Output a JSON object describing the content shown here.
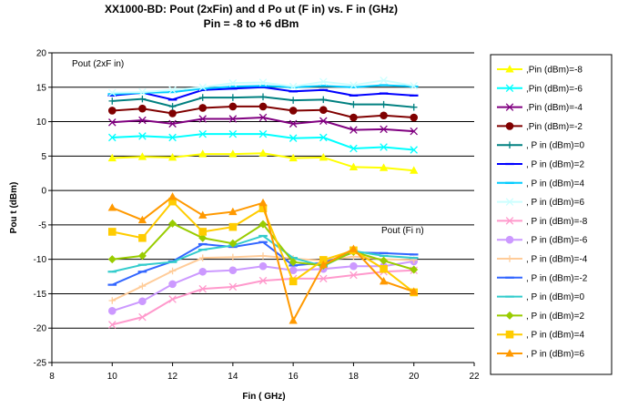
{
  "chart_data": {
    "type": "line",
    "title": "XX1000-BD: Pout (2xFin) and d Po ut (F in) vs. F in (GHz)",
    "subtitle": "Pin = -8 to +6 dBm",
    "xlabel": "Fin ( GHz)",
    "ylabel": "Pou t (dBm)",
    "xlim": [
      8,
      22
    ],
    "ylim": [
      -25,
      20
    ],
    "xticks": [
      8,
      10,
      12,
      14,
      16,
      18,
      20,
      22
    ],
    "yticks": [
      -25,
      -20,
      -15,
      -10,
      -5,
      0,
      5,
      10,
      15,
      20
    ],
    "grid": "horizontal",
    "legend_position": "right",
    "annotations": [
      "Pout (2xF in)",
      "Pout (Fi n)"
    ],
    "x": [
      10,
      11,
      12,
      13,
      14,
      15,
      16,
      17,
      18,
      19,
      20
    ],
    "series": [
      {
        "name": ",Pin  (dBm)=-8",
        "color": "#FFFF00",
        "marker": "triangle",
        "values": [
          4.7,
          4.9,
          4.8,
          5.3,
          5.3,
          5.4,
          4.7,
          4.8,
          3.4,
          3.3,
          2.9
        ]
      },
      {
        "name": ",Pin  (dBm)=-6",
        "color": "#00FFFF",
        "marker": "x",
        "values": [
          7.7,
          7.9,
          7.7,
          8.2,
          8.2,
          8.2,
          7.6,
          7.7,
          6.1,
          6.3,
          5.9
        ]
      },
      {
        "name": ",Pin  (dBm)=-4",
        "color": "#800080",
        "marker": "x",
        "values": [
          9.9,
          10.2,
          9.7,
          10.4,
          10.4,
          10.6,
          9.7,
          10.1,
          8.8,
          8.9,
          8.6
        ]
      },
      {
        "name": ",Pin  (dBm)=-2",
        "color": "#800000",
        "marker": "circle",
        "values": [
          11.6,
          11.9,
          11.2,
          12.0,
          12.2,
          12.2,
          11.6,
          11.7,
          10.6,
          10.9,
          10.6
        ]
      },
      {
        "name": ", P in (dBm)=0",
        "color": "#008080",
        "marker": "plus",
        "values": [
          13.0,
          13.3,
          12.2,
          13.5,
          13.5,
          13.6,
          13.1,
          13.2,
          12.5,
          12.5,
          12.1
        ]
      },
      {
        "name": ", P in (dBm)=2",
        "color": "#0000FF",
        "marker": "dash",
        "values": [
          13.8,
          14.2,
          13.2,
          14.6,
          14.8,
          15.0,
          14.4,
          14.6,
          13.8,
          14.1,
          13.8
        ]
      },
      {
        "name": ", P in (dBm)=4",
        "color": "#00CCFF",
        "marker": "dash",
        "values": [
          14.0,
          14.2,
          14.3,
          14.8,
          15.1,
          15.2,
          15.0,
          15.2,
          15.0,
          15.3,
          15.1
        ]
      },
      {
        "name": ", P in (dBm)=6",
        "color": "#CCFFFF",
        "marker": "x",
        "values": [
          14.2,
          14.3,
          14.6,
          15.0,
          15.6,
          15.7,
          15.1,
          15.8,
          15.3,
          16.0,
          15.2
        ]
      },
      {
        "name": ", P in (dBm)=-8",
        "color": "#FF99CC",
        "marker": "x",
        "values": [
          -19.5,
          -18.4,
          -15.8,
          -14.3,
          -14.0,
          -13.1,
          -12.8,
          -12.8,
          -12.3,
          -11.8,
          -11.6
        ]
      },
      {
        "name": ", P in (dBm)=-6",
        "color": "#CC99FF",
        "marker": "circle",
        "values": [
          -17.5,
          -16.1,
          -13.6,
          -11.8,
          -11.6,
          -11.0,
          -11.6,
          -11.4,
          -11.0,
          -11.0,
          -10.3
        ]
      },
      {
        "name": ", P in (dBm)=-4",
        "color": "#FFCC99",
        "marker": "plus",
        "values": [
          -16.0,
          -13.9,
          -11.7,
          -9.8,
          -9.7,
          -9.5,
          -9.9,
          -10.2,
          -9.6,
          -10.0,
          -10.1
        ]
      },
      {
        "name": ", P in (dBm)=-2",
        "color": "#3366FF",
        "marker": "dash",
        "values": [
          -13.7,
          -11.8,
          -10.3,
          -7.8,
          -8.2,
          -7.5,
          -10.9,
          -10.5,
          -9.0,
          -9.1,
          -9.3
        ]
      },
      {
        "name": ", P in (dBm)=0",
        "color": "#33CCCC",
        "marker": "dash",
        "values": [
          -11.8,
          -10.8,
          -10.4,
          -8.6,
          -8.0,
          -6.6,
          -9.8,
          -11.0,
          -8.8,
          -9.5,
          -9.8
        ]
      },
      {
        "name": ", P in (dBm)=2",
        "color": "#99CC00",
        "marker": "diamond",
        "values": [
          -10.0,
          -9.5,
          -4.8,
          -6.9,
          -7.7,
          -4.9,
          -10.4,
          -10.9,
          -8.9,
          -10.2,
          -11.5
        ]
      },
      {
        "name": ", P in (dBm)=4",
        "color": "#FFCC00",
        "marker": "square",
        "values": [
          -6.0,
          -6.9,
          -1.6,
          -6.0,
          -5.3,
          -2.6,
          -13.2,
          -10.1,
          -8.7,
          -11.4,
          -14.8
        ]
      },
      {
        "name": ", P in (dBm)=6",
        "color": "#FF9900",
        "marker": "triangle",
        "values": [
          -2.5,
          -4.3,
          -0.9,
          -3.6,
          -3.1,
          -1.8,
          -18.9,
          -10.8,
          -8.5,
          -13.2,
          -14.7
        ]
      }
    ]
  }
}
